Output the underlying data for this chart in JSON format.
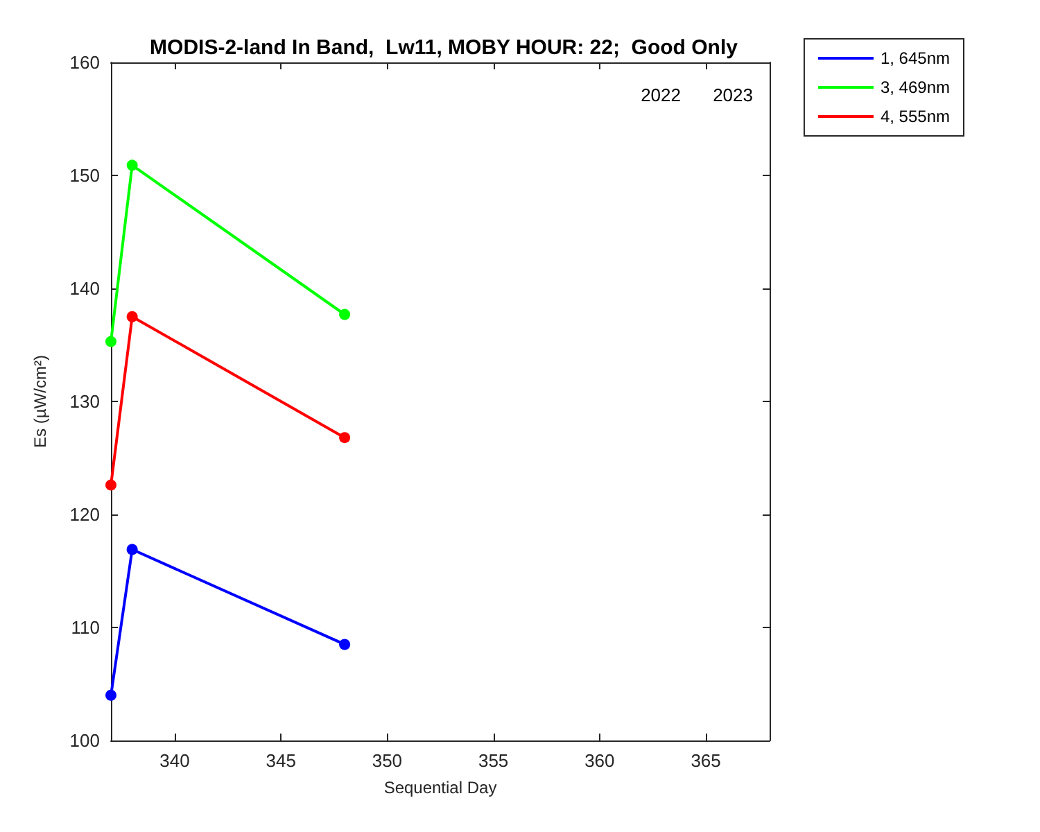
{
  "chart_data": {
    "type": "line",
    "title": "MODIS-2-land In Band,  Lw11, MOBY HOUR: 22;  Good Only",
    "xlabel": "Sequential Day",
    "ylabel": "Es (µW/cm²)",
    "annotations": [
      "2022",
      "2023"
    ],
    "x": [
      337,
      338,
      348
    ],
    "series": [
      {
        "name": "1, 645nm",
        "color": "#0000ff",
        "values": [
          104.0,
          116.9,
          108.5
        ]
      },
      {
        "name": "3, 469nm",
        "color": "#00ff00",
        "values": [
          135.3,
          150.9,
          137.7
        ]
      },
      {
        "name": "4, 555nm",
        "color": "#ff0000",
        "values": [
          122.6,
          137.5,
          126.8
        ]
      }
    ],
    "xlim": [
      337,
      368
    ],
    "xticks": [
      340,
      345,
      350,
      355,
      360,
      365
    ],
    "ylim": [
      100,
      160
    ],
    "yticks": [
      100,
      110,
      120,
      130,
      140,
      150,
      160
    ],
    "grid": false,
    "legend": "top right",
    "marker": "circle",
    "line_style": "solid"
  }
}
